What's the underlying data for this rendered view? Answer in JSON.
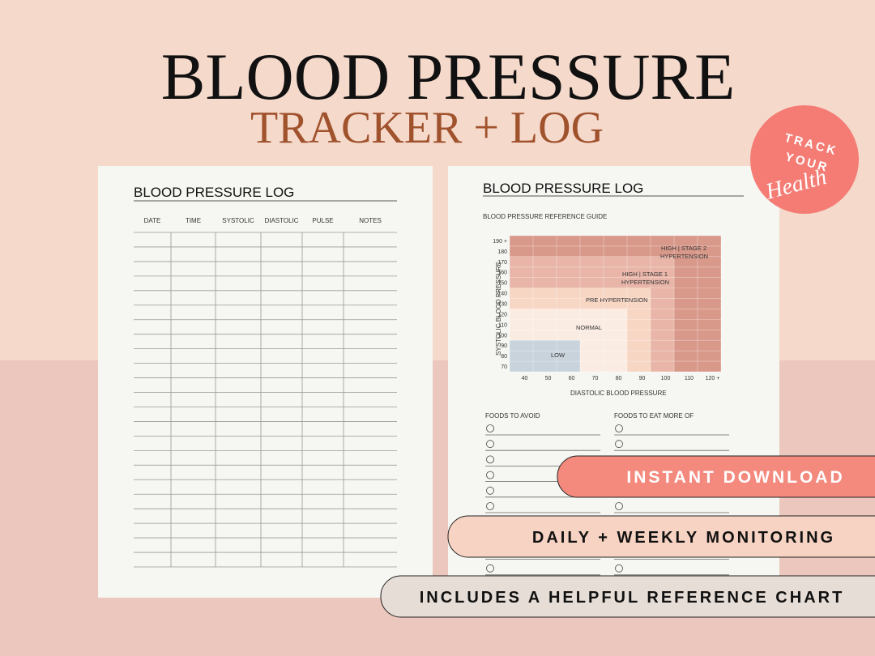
{
  "header": {
    "title": "BLOOD PRESSURE",
    "subtitle": "TRACKER + LOG"
  },
  "badge": {
    "line1": "TRACK",
    "line2": "YOUR",
    "line3": "Health"
  },
  "log_page": {
    "title": "BLOOD PRESSURE LOG",
    "columns": [
      "DATE",
      "TIME",
      "SYSTOLIC",
      "DIASTOLIC",
      "PULSE",
      "NOTES"
    ]
  },
  "guide_page": {
    "title": "BLOOD PRESSURE LOG",
    "guide_title": "BLOOD PRESSURE REFERENCE GUIDE",
    "chart": {
      "y_label": "SYSTOLIC BLOOD PRESSURE",
      "x_label": "DIASTOLIC BLOOD PRESSURE",
      "y_ticks": [
        "190 +",
        "180",
        "170",
        "160",
        "150",
        "140",
        "130",
        "120",
        "110",
        "100",
        "90",
        "80",
        "70"
      ],
      "x_ticks": [
        "40",
        "50",
        "60",
        "70",
        "80",
        "90",
        "100",
        "110",
        "120 +"
      ],
      "zones": {
        "stage2_line1": "HIGH | STAGE 2",
        "stage2_line2": "HYPERTENSION",
        "stage1_line1": "HIGH | STAGE 1",
        "stage1_line2": "HYPERTENSION",
        "pre": "PRE HYPERTENSION",
        "normal": "NORMAL",
        "low": "LOW"
      }
    },
    "foods_avoid": "FOODS TO AVOID",
    "foods_more": "FOODS TO EAT MORE OF"
  },
  "banners": [
    "INSTANT DOWNLOAD",
    "DAILY + WEEKLY MONITORING",
    "INCLUDES A HELPFUL REFERENCE CHART"
  ]
}
